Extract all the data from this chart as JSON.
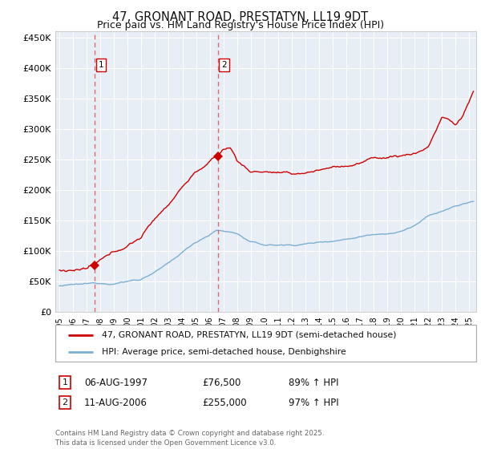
{
  "title": "47, GRONANT ROAD, PRESTATYN, LL19 9DT",
  "subtitle": "Price paid vs. HM Land Registry's House Price Index (HPI)",
  "ylim": [
    0,
    460000
  ],
  "yticks": [
    0,
    50000,
    100000,
    150000,
    200000,
    250000,
    300000,
    350000,
    400000,
    450000
  ],
  "ytick_labels": [
    "£0",
    "£50K",
    "£100K",
    "£150K",
    "£200K",
    "£250K",
    "£300K",
    "£350K",
    "£400K",
    "£450K"
  ],
  "xlim_start": 1994.7,
  "xlim_end": 2025.5,
  "background_color": "#ffffff",
  "plot_bg_color": "#e8eef5",
  "grid_color": "#ffffff",
  "red_line_color": "#cc0000",
  "blue_line_color": "#7bafd4",
  "dashed_line_color": "#e05050",
  "marker1_x": 1997.6,
  "marker1_y": 76500,
  "marker2_x": 2006.6,
  "marker2_y": 255000,
  "legend_label1": "47, GRONANT ROAD, PRESTATYN, LL19 9DT (semi-detached house)",
  "legend_label2": "HPI: Average price, semi-detached house, Denbighshire",
  "table_row1": [
    "1",
    "06-AUG-1997",
    "£76,500",
    "89% ↑ HPI"
  ],
  "table_row2": [
    "2",
    "11-AUG-2006",
    "£255,000",
    "97% ↑ HPI"
  ],
  "footer": "Contains HM Land Registry data © Crown copyright and database right 2025.\nThis data is licensed under the Open Government Licence v3.0.",
  "title_fontsize": 10.5,
  "subtitle_fontsize": 9
}
